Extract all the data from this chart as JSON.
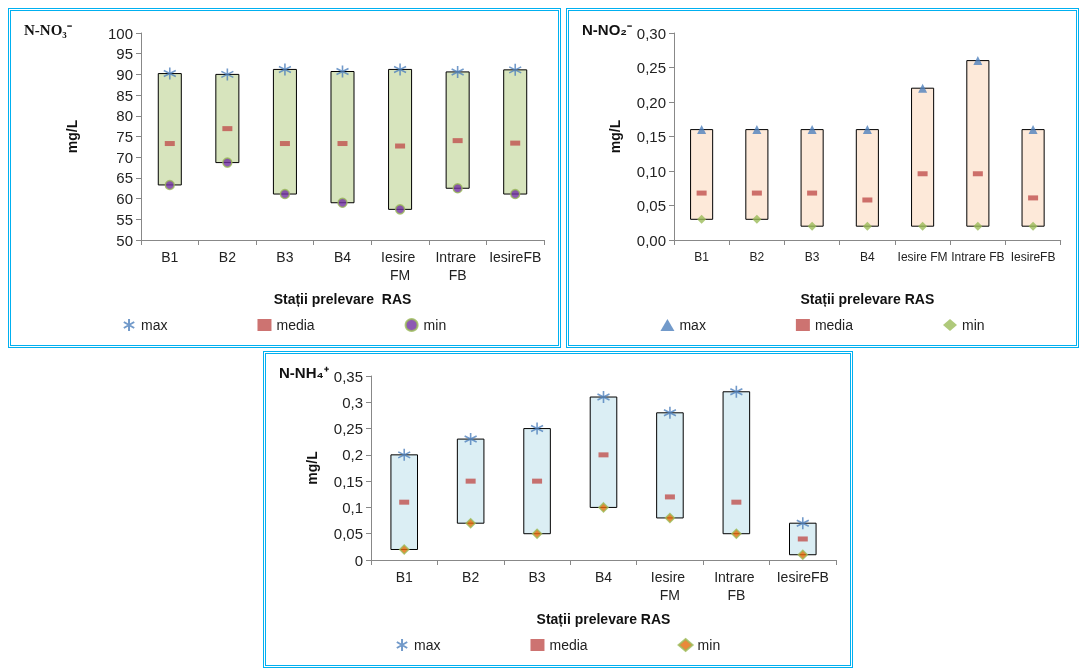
{
  "chart_data": [
    {
      "type": "bar",
      "title": "N-NO₃⁻",
      "xlabel": "Stații prelevare  RAS",
      "ylabel": "mg/L",
      "categories": [
        "B1",
        "B2",
        "B3",
        "B4",
        "Iesire FM",
        "Intrare FB",
        "IesireFB"
      ],
      "ylim": [
        50,
        100
      ],
      "yticks": [
        50,
        55,
        60,
        65,
        70,
        75,
        80,
        85,
        90,
        95,
        100
      ],
      "grid": false,
      "legend": "bottom",
      "series": [
        {
          "color": "#d7e4bd",
          "base": [
            63.3,
            68.7,
            61.1,
            59.0,
            57.4,
            62.5,
            61.1
          ],
          "values": [
            26.9,
            21.3,
            30.1,
            31.7,
            33.8,
            28.1,
            30.0
          ]
        },
        {
          "type": "scatter",
          "name": "max",
          "color": "#4f81bd",
          "marker": "cross",
          "x": [
            "B1",
            "B2",
            "B3",
            "B4",
            "Iesire FM",
            "Intrare FB",
            "IesireFB"
          ],
          "values": [
            90.2,
            90.0,
            91.2,
            90.7,
            91.2,
            90.6,
            91.1
          ]
        },
        {
          "type": "scatter",
          "name": "media",
          "color": "#c0504d",
          "marker": "square",
          "x": [
            "B1",
            "B2",
            "B3",
            "B4",
            "Iesire FM",
            "Intrare FB",
            "IesireFB"
          ],
          "values": [
            73.3,
            76.9,
            73.3,
            73.3,
            72.7,
            74.0,
            73.4
          ]
        },
        {
          "type": "scatter",
          "name": "min",
          "color": "#7030a0",
          "marker": "circle",
          "x": [
            "B1",
            "B2",
            "B3",
            "B4",
            "Iesire FM",
            "Intrare FB",
            "IesireFB"
          ],
          "values": [
            63.3,
            68.7,
            61.1,
            59.0,
            57.4,
            62.5,
            61.1
          ]
        }
      ]
    },
    {
      "type": "bar",
      "title": "N-NO₂⁻",
      "xlabel": "Stații prelevare RAS",
      "ylabel": "mg/L",
      "categories": [
        "B1",
        "B2",
        "B3",
        "B4",
        "Iesire FM",
        "Intrare FB",
        "IesireFB"
      ],
      "ylim": [
        0,
        0.3
      ],
      "yticks": [
        {
          "value": 0,
          "label": "0,00"
        },
        {
          "value": 0.05,
          "label": "0,05"
        },
        {
          "value": 0.1,
          "label": "0,10"
        },
        {
          "value": 0.15,
          "label": "0,15"
        },
        {
          "value": 0.2,
          "label": "0,20"
        },
        {
          "value": 0.25,
          "label": "0,25"
        },
        {
          "value": 0.3,
          "label": "0,30"
        }
      ],
      "grid": false,
      "legend": "bottom",
      "series": [
        {
          "color": "#fde9d9",
          "base": [
            0.03,
            0.03,
            0.02,
            0.02,
            0.02,
            0.02,
            0.02
          ],
          "values": [
            0.13,
            0.13,
            0.14,
            0.14,
            0.2,
            0.24,
            0.14
          ]
        },
        {
          "type": "scatter",
          "name": "max",
          "color": "#4f81bd",
          "marker": "triangle",
          "x": [
            "B1",
            "B2",
            "B3",
            "B4",
            "Iesire FM",
            "Intrare FB",
            "IesireFB"
          ],
          "values": [
            0.16,
            0.16,
            0.16,
            0.16,
            0.22,
            0.26,
            0.16
          ]
        },
        {
          "type": "scatter",
          "name": "media",
          "color": "#c0504d",
          "marker": "square",
          "x": [
            "B1",
            "B2",
            "B3",
            "B4",
            "Iesire FM",
            "Intrare FB",
            "IesireFB"
          ],
          "values": [
            0.068,
            0.068,
            0.068,
            0.058,
            0.096,
            0.096,
            0.061
          ]
        },
        {
          "type": "scatter",
          "name": "min",
          "color": "#9bbb59",
          "marker": "diamond",
          "x": [
            "B1",
            "B2",
            "B3",
            "B4",
            "Iesire FM",
            "Intrare FB",
            "IesireFB"
          ],
          "values": [
            0.03,
            0.03,
            0.02,
            0.02,
            0.02,
            0.02,
            0.02
          ]
        }
      ]
    },
    {
      "type": "bar",
      "title": "N-NH₄⁺",
      "xlabel": "Stații prelevare RAS",
      "ylabel": "mg/L",
      "categories": [
        "B1",
        "B2",
        "B3",
        "B4",
        "Iesire FM",
        "Intrare FB",
        "IesireFB"
      ],
      "ylim": [
        0,
        0.35
      ],
      "yticks": [
        0,
        {
          "value": 0.05,
          "label": "0,05"
        },
        {
          "value": 0.1,
          "label": "0,1"
        },
        {
          "value": 0.15,
          "label": "0,15"
        },
        {
          "value": 0.2,
          "label": "0,2"
        },
        {
          "value": 0.25,
          "label": "0,25"
        },
        {
          "value": 0.3,
          "label": "0,3"
        },
        {
          "value": 0.35,
          "label": "0,35"
        }
      ],
      "grid": false,
      "legend": "bottom",
      "series": [
        {
          "color": "#dbeef4",
          "base": [
            0.02,
            0.07,
            0.05,
            0.1,
            0.08,
            0.05,
            0.01
          ],
          "values": [
            0.18,
            0.16,
            0.2,
            0.21,
            0.2,
            0.27,
            0.06
          ]
        },
        {
          "type": "scatter",
          "name": "max",
          "color": "#4f81bd",
          "marker": "cross",
          "x": [
            "B1",
            "B2",
            "B3",
            "B4",
            "Iesire FM",
            "Intrare FB",
            "IesireFB"
          ],
          "values": [
            0.2,
            0.23,
            0.25,
            0.31,
            0.28,
            0.32,
            0.07
          ]
        },
        {
          "type": "scatter",
          "name": "media",
          "color": "#c0504d",
          "marker": "square",
          "x": [
            "B1",
            "B2",
            "B3",
            "B4",
            "Iesire FM",
            "Intrare FB",
            "IesireFB"
          ],
          "values": [
            0.11,
            0.15,
            0.15,
            0.2,
            0.12,
            0.11,
            0.04
          ]
        },
        {
          "type": "scatter",
          "name": "min",
          "color": "#e36c09",
          "marker": "diamond",
          "x": [
            "B1",
            "B2",
            "B3",
            "B4",
            "Iesire FM",
            "Intrare FB",
            "IesireFB"
          ],
          "values": [
            0.02,
            0.07,
            0.05,
            0.1,
            0.08,
            0.05,
            0.01
          ]
        }
      ]
    }
  ]
}
